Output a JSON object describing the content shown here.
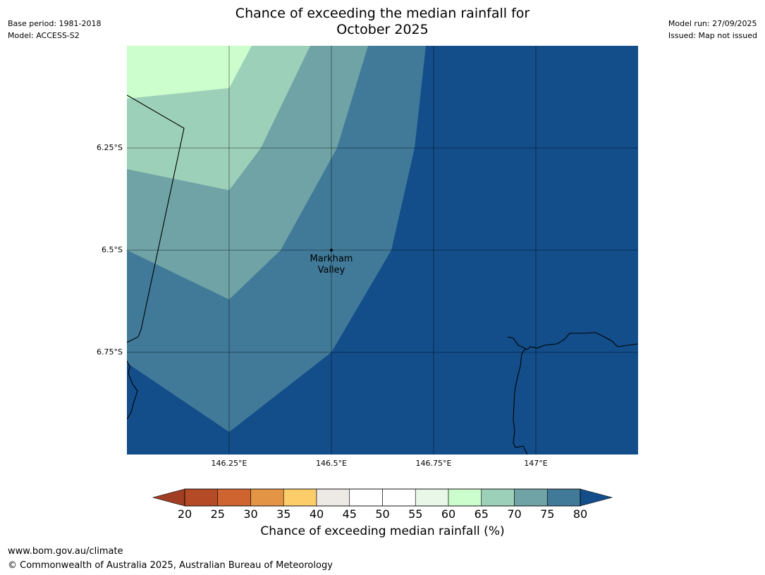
{
  "header": {
    "title_line1": "Chance of exceeding the median rainfall for",
    "title_line2": "October 2025",
    "base_period": "Base period: 1981-2018",
    "model": "Model: ACCESS-S2",
    "model_run": "Model run: 27/09/2025",
    "issued": "Issued: Map not issued"
  },
  "map": {
    "lat_labels": [
      "6.25°S",
      "6.5°S",
      "6.75°S"
    ],
    "lon_labels": [
      "146.25°E",
      "146.5°E",
      "146.75°E",
      "147°E"
    ],
    "place_label_line1": "Markham",
    "place_label_line2": "Valley",
    "colors": {
      "band_80_plus": "#134e8a",
      "band_75_80": "#417a99",
      "band_70_75": "#6fa3a6",
      "band_65_70": "#9dd0b9",
      "band_60_65": "#ccfdcc"
    }
  },
  "colorbar": {
    "ticks": [
      "20",
      "25",
      "30",
      "35",
      "40",
      "45",
      "50",
      "55",
      "60",
      "65",
      "70",
      "75",
      "80"
    ],
    "colors": [
      "#a13d23",
      "#b54a26",
      "#d06431",
      "#e39445",
      "#fdcd69",
      "#ede9e5",
      "#ffffff",
      "#ffffff",
      "#e9f7e9",
      "#ccfdcc",
      "#9dd0b9",
      "#6fa3a6",
      "#417a99",
      "#134e8a"
    ],
    "label": "Chance of exceeding median rainfall (%)"
  },
  "footer": {
    "url": "www.bom.gov.au/climate",
    "copyright": "© Commonwealth of Australia 2025, Australian Bureau of Meteorology"
  }
}
